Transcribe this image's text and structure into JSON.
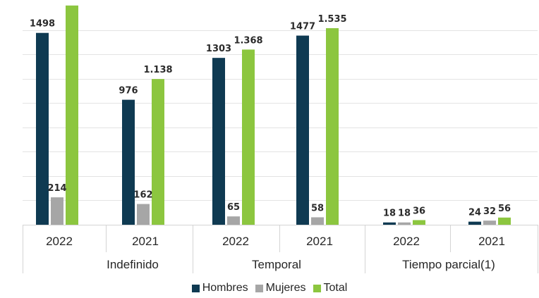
{
  "chart_data": {
    "type": "bar",
    "groups": [
      "Indefinido",
      "Temporal",
      "Tiempo parcial(1)"
    ],
    "categories": [
      "2022",
      "2021",
      "2022",
      "2021",
      "2022",
      "2021"
    ],
    "series": [
      {
        "name": "Hombres",
        "color": "#0f3a52",
        "values": [
          1498,
          976,
          1303,
          1477,
          18,
          24
        ],
        "labels": [
          "1498",
          "976",
          "1303",
          "1477",
          "18",
          "24"
        ]
      },
      {
        "name": "Mujeres",
        "color": "#a6a6a6",
        "values": [
          214,
          162,
          65,
          58,
          18,
          32
        ],
        "labels": [
          "214",
          "162",
          "65",
          "58",
          "18",
          "32"
        ]
      },
      {
        "name": "Total",
        "color": "#8cc63f",
        "values": [
          1712,
          1138,
          1368,
          1535,
          36,
          56
        ],
        "labels": [
          "",
          "1.138",
          "1.368",
          "1.535",
          "36",
          "56"
        ]
      }
    ],
    "ylim": [
      0,
      1700
    ],
    "grid": true,
    "legend_position": "bottom",
    "legend": [
      "Hombres",
      "Mujeres",
      "Total"
    ]
  }
}
